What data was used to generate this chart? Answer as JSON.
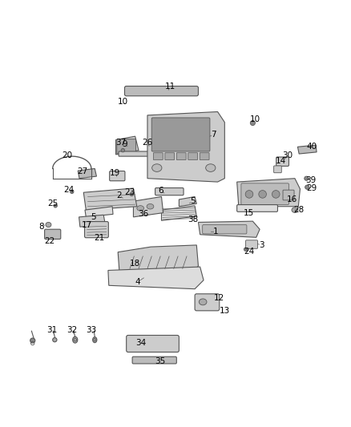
{
  "title": "",
  "background_color": "#ffffff",
  "fig_width": 4.38,
  "fig_height": 5.33,
  "dpi": 100,
  "line_color": "#555555",
  "label_color": "#000000",
  "label_fontsize": 7.5
}
